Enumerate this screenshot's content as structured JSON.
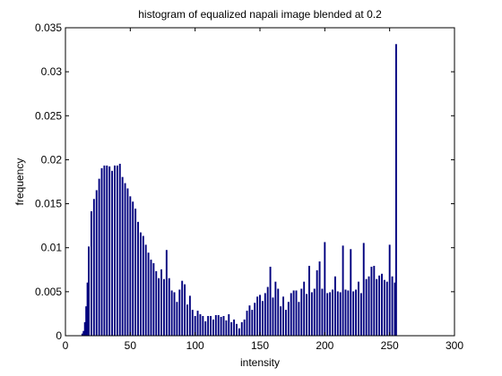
{
  "chart_data": {
    "type": "bar",
    "title": "histogram of equalized napali image blended at 0.2",
    "xlabel": "intensity",
    "ylabel": "frequency",
    "xlim": [
      0,
      300
    ],
    "ylim": [
      0,
      0.035
    ],
    "xticks": [
      "0",
      "50",
      "100",
      "150",
      "200",
      "250",
      "300"
    ],
    "yticks": [
      "0",
      "0.005",
      "0.01",
      "0.015",
      "0.02",
      "0.025",
      "0.03",
      "0.035"
    ],
    "bar_color": "#00007f",
    "x": [
      13,
      14,
      15,
      16,
      17,
      18,
      20,
      22,
      24,
      26,
      28,
      30,
      32,
      34,
      36,
      38,
      40,
      42,
      44,
      46,
      48,
      50,
      52,
      54,
      56,
      58,
      60,
      62,
      64,
      66,
      68,
      70,
      72,
      74,
      76,
      78,
      80,
      82,
      84,
      86,
      88,
      90,
      92,
      94,
      96,
      98,
      100,
      102,
      104,
      106,
      108,
      110,
      112,
      114,
      116,
      118,
      120,
      122,
      124,
      126,
      128,
      130,
      132,
      134,
      136,
      138,
      140,
      142,
      144,
      146,
      148,
      150,
      152,
      154,
      156,
      158,
      160,
      162,
      164,
      166,
      168,
      170,
      172,
      174,
      176,
      178,
      180,
      182,
      184,
      186,
      188,
      190,
      192,
      194,
      196,
      198,
      200,
      202,
      204,
      206,
      208,
      210,
      212,
      214,
      216,
      218,
      220,
      222,
      224,
      226,
      228,
      230,
      232,
      234,
      236,
      238,
      240,
      242,
      244,
      246,
      248,
      250,
      252,
      254,
      255
    ],
    "values": [
      0.0002,
      0.0005,
      0.0015,
      0.0033,
      0.006,
      0.0101,
      0.0141,
      0.0155,
      0.0165,
      0.0178,
      0.019,
      0.0193,
      0.0193,
      0.0192,
      0.0187,
      0.0193,
      0.0193,
      0.0195,
      0.018,
      0.0173,
      0.0167,
      0.0158,
      0.0152,
      0.0144,
      0.0129,
      0.0117,
      0.0113,
      0.0103,
      0.0094,
      0.0086,
      0.0082,
      0.0073,
      0.0065,
      0.0075,
      0.0064,
      0.0097,
      0.0065,
      0.0051,
      0.0049,
      0.0038,
      0.0052,
      0.0062,
      0.0058,
      0.0035,
      0.0045,
      0.0029,
      0.0022,
      0.0028,
      0.0024,
      0.0022,
      0.0016,
      0.0022,
      0.0022,
      0.0018,
      0.0023,
      0.0023,
      0.0021,
      0.0022,
      0.0017,
      0.0024,
      0.0015,
      0.0018,
      0.0013,
      0.0008,
      0.0015,
      0.0018,
      0.0028,
      0.0034,
      0.0029,
      0.0037,
      0.0044,
      0.0046,
      0.0039,
      0.0048,
      0.0055,
      0.0078,
      0.0043,
      0.0061,
      0.0053,
      0.0033,
      0.0044,
      0.0029,
      0.0038,
      0.0048,
      0.0051,
      0.0051,
      0.0038,
      0.0053,
      0.0061,
      0.0047,
      0.0079,
      0.0049,
      0.0053,
      0.0074,
      0.0084,
      0.0053,
      0.0106,
      0.0048,
      0.0049,
      0.0052,
      0.0067,
      0.005,
      0.0049,
      0.0102,
      0.0052,
      0.0051,
      0.0098,
      0.005,
      0.0052,
      0.0061,
      0.0048,
      0.0105,
      0.0064,
      0.0067,
      0.0078,
      0.0079,
      0.0064,
      0.0068,
      0.007,
      0.0063,
      0.0061,
      0.0103,
      0.0067,
      0.006,
      0.0331
    ]
  }
}
